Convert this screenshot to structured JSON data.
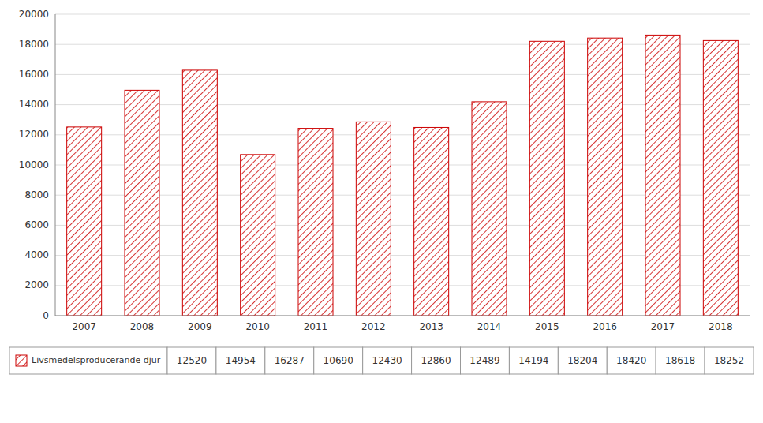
{
  "chart_data": {
    "type": "bar",
    "categories": [
      "2007",
      "2008",
      "2009",
      "2010",
      "2011",
      "2012",
      "2013",
      "2014",
      "2015",
      "2016",
      "2017",
      "2018"
    ],
    "series": [
      {
        "name": "Livsmedelsproducerande djur",
        "color": "#cc0000",
        "values": [
          12520,
          14954,
          16287,
          10690,
          12430,
          12860,
          12489,
          14194,
          18204,
          18420,
          18618,
          18252
        ]
      }
    ],
    "ylim": [
      0,
      20000
    ],
    "yticks": [
      0,
      2000,
      4000,
      6000,
      8000,
      10000,
      12000,
      14000,
      16000,
      18000,
      20000
    ],
    "grid": true,
    "data_labels": true
  }
}
